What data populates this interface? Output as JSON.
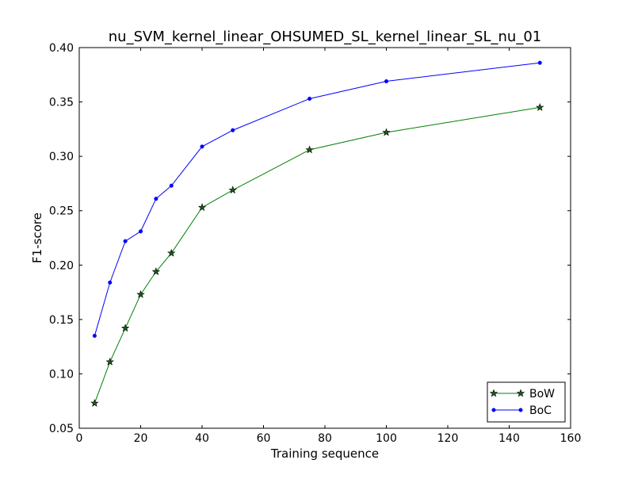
{
  "chart_data": {
    "type": "line",
    "title": "nu_SVM_kernel_linear_OHSUMED_SL_kernel_linear_SL_nu_01",
    "xlabel": "Training sequence",
    "ylabel": "F1-score",
    "xlim": [
      0,
      160
    ],
    "ylim": [
      0.05,
      0.4
    ],
    "xticks": [
      0,
      20,
      40,
      60,
      80,
      100,
      120,
      140,
      160
    ],
    "xtick_labels": [
      "0",
      "20",
      "40",
      "60",
      "80",
      "100",
      "120",
      "140",
      "160"
    ],
    "yticks": [
      0.05,
      0.1,
      0.15,
      0.2,
      0.25,
      0.3,
      0.35,
      0.4
    ],
    "ytick_labels": [
      "0.05",
      "0.10",
      "0.15",
      "0.20",
      "0.25",
      "0.30",
      "0.35",
      "0.40"
    ],
    "grid": false,
    "legend_position": "lower-right",
    "series": [
      {
        "name": "BoW",
        "color": "#008000",
        "marker": "star",
        "x": [
          5,
          10,
          15,
          20,
          25,
          30,
          40,
          50,
          75,
          100,
          150
        ],
        "y": [
          0.073,
          0.111,
          0.142,
          0.173,
          0.194,
          0.211,
          0.253,
          0.269,
          0.306,
          0.322,
          0.345
        ]
      },
      {
        "name": "BoC",
        "color": "#0000ff",
        "marker": "dot",
        "x": [
          5,
          10,
          15,
          20,
          25,
          30,
          40,
          50,
          75,
          100,
          150
        ],
        "y": [
          0.135,
          0.184,
          0.222,
          0.231,
          0.261,
          0.273,
          0.309,
          0.324,
          0.353,
          0.369,
          0.386
        ]
      }
    ]
  }
}
